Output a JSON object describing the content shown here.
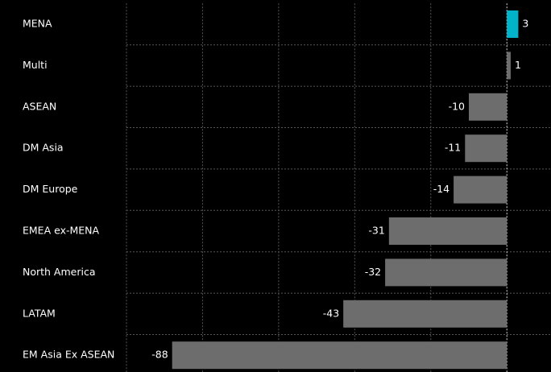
{
  "chart_data": {
    "type": "bar",
    "orientation": "horizontal",
    "categories": [
      "MENA",
      "Multi",
      "ASEAN",
      "DM Asia",
      "DM Europe",
      "EMEA ex-MENA",
      "North America",
      "LATAM",
      "EM Asia Ex ASEAN"
    ],
    "values": [
      3,
      1,
      -10,
      -11,
      -14,
      -31,
      -32,
      -43,
      -88
    ],
    "colors": [
      "#00b3c9",
      "#6d6d6d",
      "#6d6d6d",
      "#6d6d6d",
      "#6d6d6d",
      "#6d6d6d",
      "#6d6d6d",
      "#6d6d6d",
      "#6d6d6d"
    ],
    "xlim": [
      -100,
      11.6
    ],
    "xticks": [
      -100,
      -80,
      -60,
      -40,
      -20,
      0
    ],
    "grid": true
  }
}
